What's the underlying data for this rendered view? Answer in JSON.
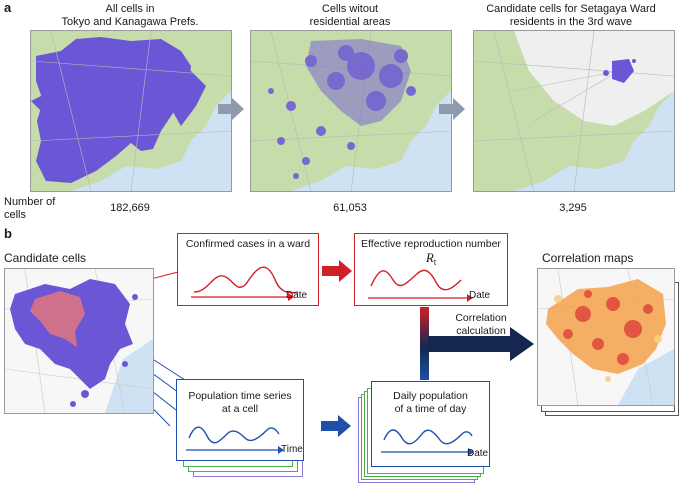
{
  "panel_a": {
    "label": "a",
    "maps": [
      {
        "title_line1": "All cells in",
        "title_line2": "Tokyo and Kanagawa Prefs.",
        "count": "182,669"
      },
      {
        "title_line1": "Cells witout",
        "title_line2": "residential areas",
        "count": "61,053"
      },
      {
        "title_line1": "Candidate cells for Setagaya Ward",
        "title_line2": "residents in the 3rd wave",
        "count": "3,295"
      }
    ],
    "row_label_line1": "Number of",
    "row_label_line2": "cells"
  },
  "panel_b": {
    "label": "b",
    "candidate_cells_title": "Candidate cells",
    "correlation_maps_title": "Correlation maps",
    "confirmed_cases_title": "Confirmed cases in a ward",
    "reproduction_title": "Effective reproduction number ",
    "reproduction_symbol": "R",
    "reproduction_subscript": "t",
    "population_series_line1": "Population time series",
    "population_series_line2": "at a cell",
    "daily_population_line1": "Daily population",
    "daily_population_line2": "of a time of day",
    "axis_date": "Date",
    "axis_time": "Time",
    "correlation_calc_line1": "Correlation",
    "correlation_calc_line2": "calculation"
  },
  "colors": {
    "purple": "#6b56d6",
    "red": "#d02027",
    "navy": "#14284f",
    "blue": "#1f4fa8",
    "green_land": "#c6dcaa",
    "water": "#cfe2f3"
  }
}
